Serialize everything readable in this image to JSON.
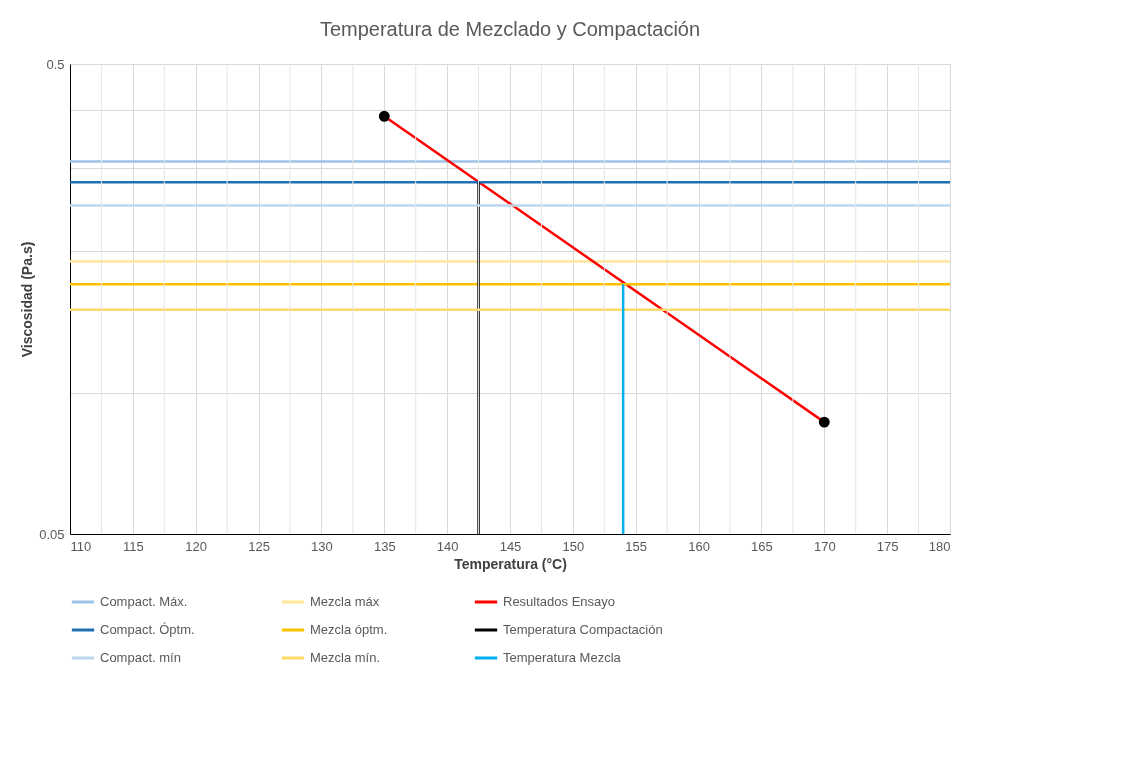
{
  "chart_data": {
    "type": "line",
    "title": "Temperatura  de Mezclado y Compactación",
    "xlabel": "Temperatura (°C)",
    "ylabel": "Viscosidad (Pa.s)",
    "log": "y",
    "grid": true,
    "legend": "bottom",
    "line_style": "solid",
    "xlim": [
      110,
      180
    ],
    "ylim": [
      0.05,
      0.5
    ],
    "xticks": [
      110,
      {
        "value": 112.5,
        "label": null
      },
      115,
      {
        "value": 117.5,
        "label": null
      },
      120,
      {
        "value": 122.5,
        "label": null
      },
      125,
      {
        "value": 127.5,
        "label": null
      },
      130,
      {
        "value": 132.5,
        "label": null
      },
      135,
      {
        "value": 137.5,
        "label": null
      },
      140,
      {
        "value": 142.5,
        "label": null
      },
      145,
      {
        "value": 147.5,
        "label": null
      },
      150,
      {
        "value": 152.5,
        "label": null
      },
      155,
      {
        "value": 157.5,
        "label": null
      },
      160,
      {
        "value": 162.5,
        "label": null
      },
      165,
      {
        "value": 167.5,
        "label": null
      },
      170,
      {
        "value": 172.5,
        "label": null
      },
      175,
      {
        "value": 177.5,
        "label": null
      },
      180
    ],
    "yticks": [
      0.05,
      {
        "value": 0.1,
        "label": null
      },
      {
        "value": 0.2,
        "label": null
      },
      {
        "value": 0.3,
        "label": null
      },
      {
        "value": 0.4,
        "label": null
      },
      0.5
    ],
    "series": [
      {
        "name": "Compact. Máx.",
        "color": "#9dc3e6",
        "x": [
          110,
          180
        ],
        "values": [
          0.31,
          0.31
        ],
        "marker": "none"
      },
      {
        "name": "Mezcla máx",
        "color": "#ffe699",
        "x": [
          110,
          180
        ],
        "values": [
          0.19,
          0.19
        ],
        "marker": "none"
      },
      {
        "name": "Resultados Ensayo",
        "color": "#ff0000",
        "x": [
          135,
          170
        ],
        "values": [
          0.387,
          0.0865
        ],
        "marker": "circle"
      },
      {
        "name": "Compact. Óptm.",
        "color": "#1f6fb5",
        "x": [
          110,
          180
        ],
        "values": [
          0.28,
          0.28
        ],
        "marker": "none"
      },
      {
        "name": "Mezcla óptm.",
        "color": "#ffc000",
        "x": [
          110,
          180
        ],
        "values": [
          0.17,
          0.17
        ],
        "marker": "none"
      },
      {
        "name": "Temperatura Compactación",
        "color": "#000000",
        "x": [
          142.5,
          142.5
        ],
        "values": [
          0.05,
          0.28
        ],
        "marker": "none"
      },
      {
        "name": "Compact. mín",
        "color": "#bdd7ee",
        "x": [
          110,
          180
        ],
        "values": [
          0.25,
          0.25
        ],
        "marker": "none"
      },
      {
        "name": "Mezcla mín.",
        "color": "#ffd966",
        "x": [
          110,
          180
        ],
        "values": [
          0.15,
          0.15
        ],
        "marker": "none"
      },
      {
        "name": "Temperatura Mezcla",
        "color": "#00b0f0",
        "x": [
          154,
          154
        ],
        "values": [
          0.05,
          0.17
        ],
        "marker": "none"
      }
    ]
  }
}
